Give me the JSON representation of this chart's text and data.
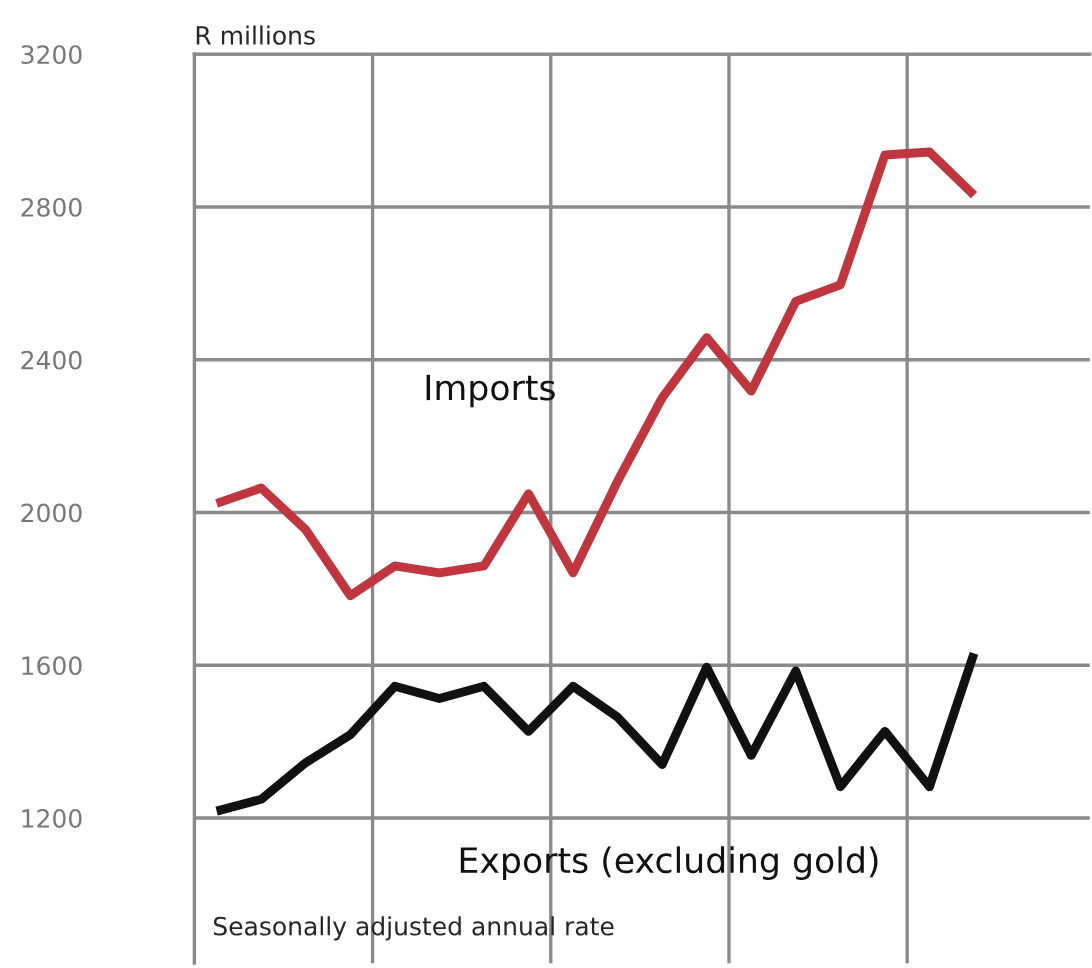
{
  "chart_data": {
    "type": "line",
    "ylabel": "R millions",
    "categories": [
      null,
      null,
      null,
      null,
      null,
      null,
      null,
      null,
      null,
      null,
      null,
      null,
      null,
      null,
      null,
      null,
      null,
      null
    ],
    "ylim": [
      820,
      3200
    ],
    "yticks": [
      1200,
      1600,
      2000,
      2400,
      2800,
      3200
    ],
    "series": [
      {
        "name": "Imports",
        "color": "#c0363f",
        "values": [
          2024,
          2064,
          1955,
          1782,
          1860,
          1842,
          1860,
          2049,
          1842,
          2082,
          2300,
          2458,
          2318,
          2553,
          2596,
          2936,
          2944,
          2831
        ]
      },
      {
        "name": "Exports (excluding gold)",
        "color": "#111111",
        "values": [
          1218,
          1249,
          1345,
          1418,
          1545,
          1513,
          1545,
          1427,
          1545,
          1464,
          1340,
          1595,
          1364,
          1585,
          1282,
          1427,
          1282,
          1631
        ]
      }
    ],
    "grid": true,
    "tick_labels": "y",
    "legend": false,
    "marker": "none",
    "line_style": "solid",
    "annotations": [
      "Seasonally adjusted annual rate"
    ]
  }
}
